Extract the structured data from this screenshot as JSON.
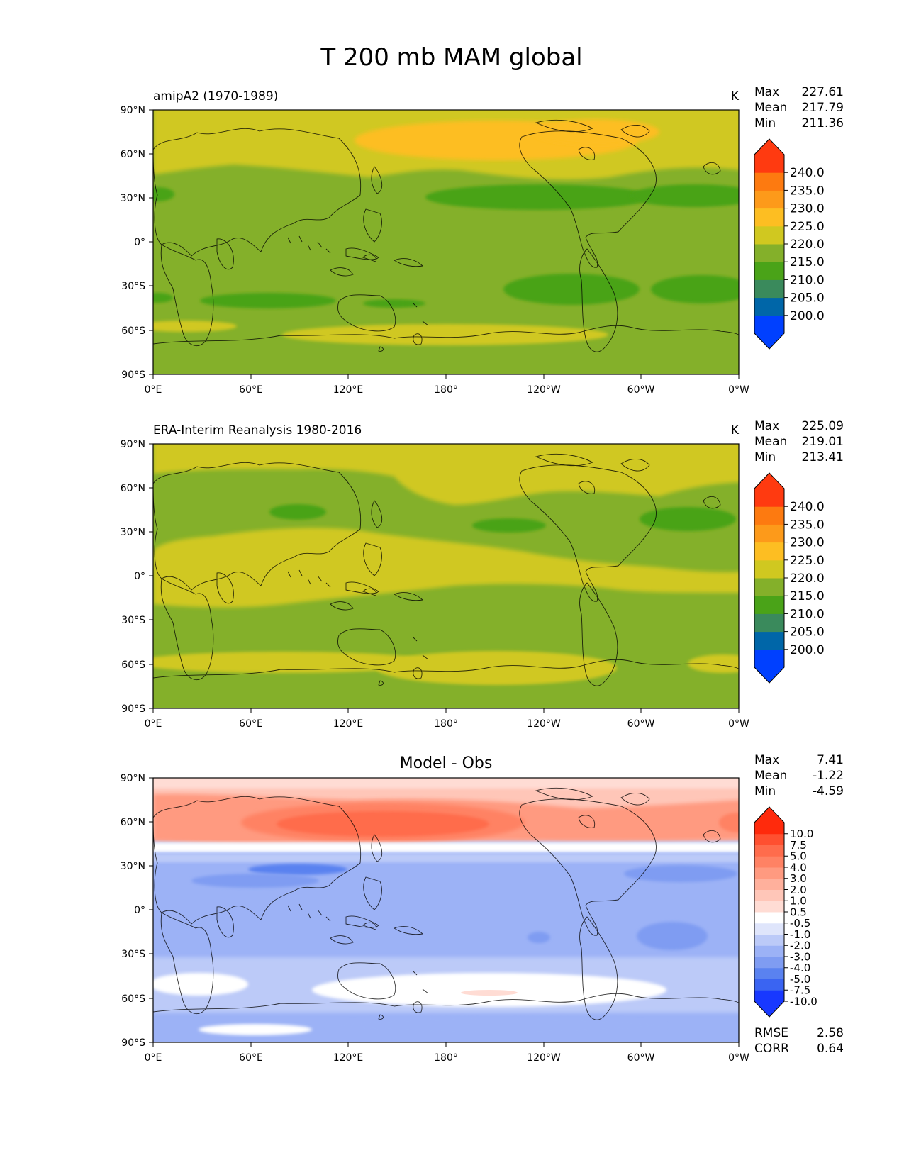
{
  "title": "T 200 mb MAM global",
  "lat_ticks": [
    "90°N",
    "60°N",
    "30°N",
    "0°",
    "30°S",
    "60°S",
    "90°S"
  ],
  "lon_ticks": [
    "0°E",
    "60°E",
    "120°E",
    "180°",
    "120°W",
    "60°W",
    "0°W"
  ],
  "colors": {
    "abs_levels": [
      "#0040ff",
      "#0066a8",
      "#3a8a5c",
      "#4aa318",
      "#84b02a",
      "#d0c820",
      "#fdbe22",
      "#fd9a1a",
      "#fd7a10",
      "#ff3a10"
    ],
    "diff_levels": [
      "#1838ff",
      "#3a64f2",
      "#5a82f0",
      "#7f9cf2",
      "#9cb2f6",
      "#bccaf8",
      "#dfe5fb",
      "#ffffff",
      "#ffdcd4",
      "#ffc6b8",
      "#ffb09c",
      "#ff9a80",
      "#ff8264",
      "#ff6c4c",
      "#ff5030",
      "#ff2a0c"
    ],
    "coast": "#000000"
  },
  "panels": [
    {
      "id": "test",
      "label": "amipA2 (1970-1989)",
      "units": "K",
      "stats": [
        {
          "name": "Max",
          "value": "227.61"
        },
        {
          "name": "Mean",
          "value": "217.79"
        },
        {
          "name": "Min",
          "value": "211.36"
        }
      ],
      "colorbar_labels": [
        "240.0",
        "235.0",
        "230.0",
        "225.0",
        "220.0",
        "215.0",
        "210.0",
        "205.0",
        "200.0"
      ]
    },
    {
      "id": "ref",
      "label": "ERA-Interim Reanalysis 1980-2016",
      "units": "K",
      "stats": [
        {
          "name": "Max",
          "value": "225.09"
        },
        {
          "name": "Mean",
          "value": "219.01"
        },
        {
          "name": "Min",
          "value": "213.41"
        }
      ],
      "colorbar_labels": [
        "240.0",
        "235.0",
        "230.0",
        "225.0",
        "220.0",
        "215.0",
        "210.0",
        "205.0",
        "200.0"
      ]
    },
    {
      "id": "diff",
      "label": "Model - Obs",
      "units": "",
      "stats": [
        {
          "name": "Max",
          "value": "7.41"
        },
        {
          "name": "Mean",
          "value": "-1.22"
        },
        {
          "name": "Min",
          "value": "-4.59"
        }
      ],
      "colorbar_labels": [
        "10.0",
        "7.5",
        "5.0",
        "4.0",
        "3.0",
        "2.0",
        "1.0",
        "0.5",
        "-0.5",
        "-1.0",
        "-2.0",
        "-3.0",
        "-4.0",
        "-5.0",
        "-7.5",
        "-10.0"
      ],
      "metrics": [
        {
          "name": "RMSE",
          "value": "2.58"
        },
        {
          "name": "CORR",
          "value": "0.64"
        }
      ]
    }
  ]
}
